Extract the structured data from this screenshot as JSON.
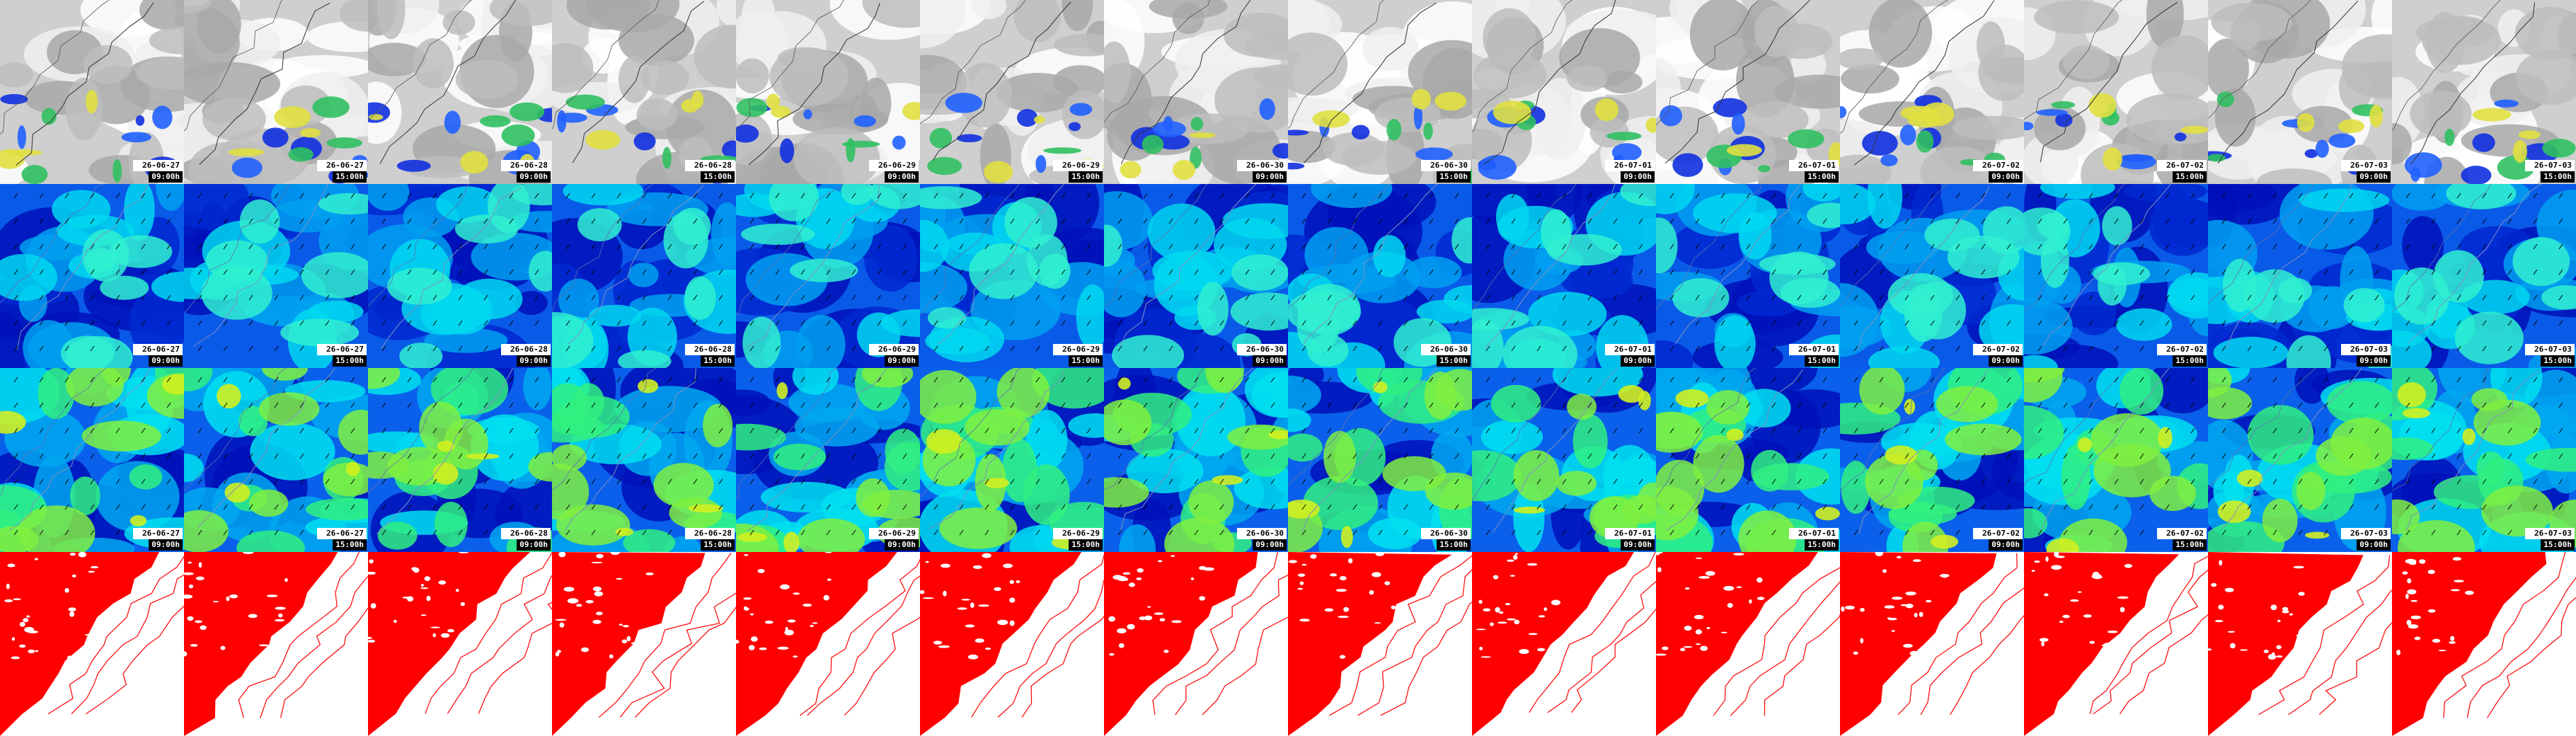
{
  "frames": [
    {
      "date": "26-06-27",
      "time": "09:00h"
    },
    {
      "date": "26-06-27",
      "time": "15:00h"
    },
    {
      "date": "26-06-28",
      "time": "09:00h"
    },
    {
      "date": "26-06-28",
      "time": "15:00h"
    },
    {
      "date": "26-06-29",
      "time": "09:00h"
    },
    {
      "date": "26-06-29",
      "time": "15:00h"
    },
    {
      "date": "26-06-30",
      "time": "09:00h"
    },
    {
      "date": "26-06-30",
      "time": "15:00h"
    },
    {
      "date": "26-07-01",
      "time": "09:00h"
    },
    {
      "date": "26-07-01",
      "time": "15:00h"
    },
    {
      "date": "26-07-02",
      "time": "09:00h"
    },
    {
      "date": "26-07-02",
      "time": "15:00h"
    },
    {
      "date": "26-07-03",
      "time": "09:00h"
    },
    {
      "date": "26-07-03",
      "time": "15:00h"
    }
  ]
}
